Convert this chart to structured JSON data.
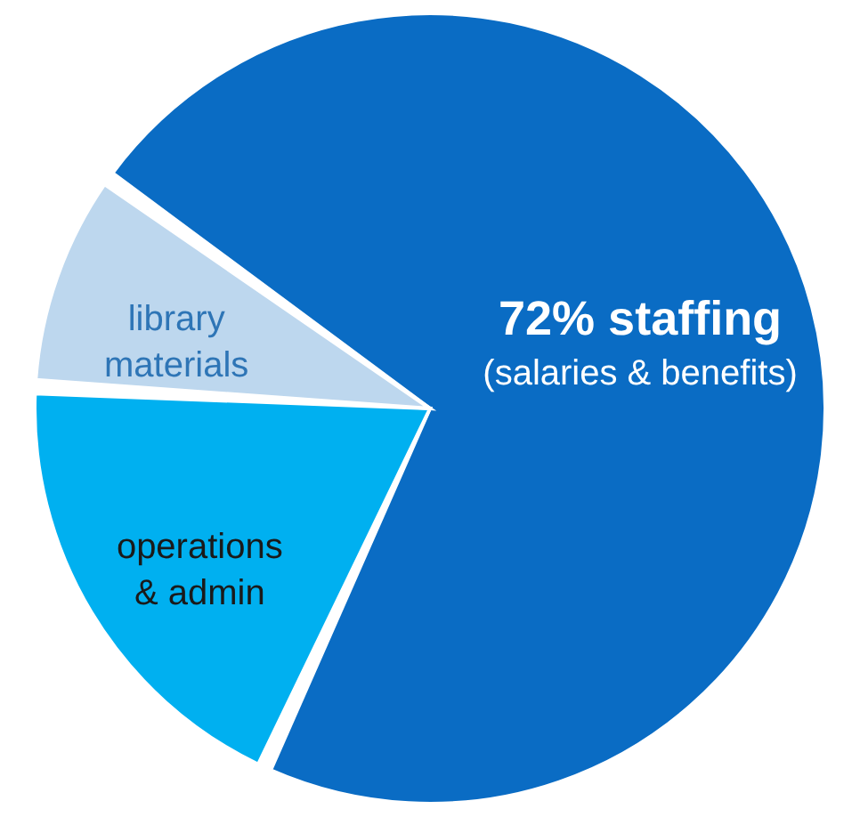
{
  "chart_data": {
    "type": "pie",
    "categories": [
      "staffing",
      "operations & admin",
      "library materials"
    ],
    "values": [
      72,
      19,
      9
    ],
    "colors": [
      "#0a6cc4",
      "#00b0f0",
      "#bdd7ee"
    ],
    "value_labels": [
      "72%",
      null,
      null
    ],
    "annotations": [
      "(salaries & benefits)"
    ],
    "legend": false
  }
}
